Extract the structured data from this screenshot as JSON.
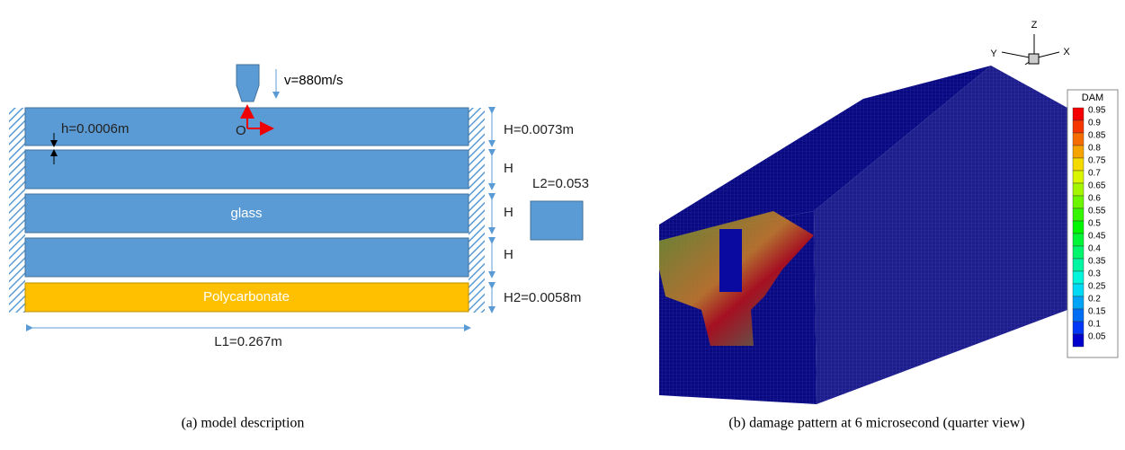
{
  "panel_a": {
    "velocity": "v=880m/s",
    "gap": "h=0.0006m",
    "origin": "O",
    "layer_height": "H=0.0073m",
    "layer_labels": [
      "H",
      "H",
      "H"
    ],
    "plate": "L2=0.053",
    "glass": "glass",
    "backing": "Polycarbonate",
    "backing_height": "H2=0.0058m",
    "length": "L1=0.267m",
    "caption": "(a) model description"
  },
  "panel_b": {
    "axes": [
      "Z",
      "Y",
      "X"
    ],
    "legend": {
      "title": "DAM",
      "levels": [
        0.95,
        0.9,
        0.85,
        0.8,
        0.75,
        0.7,
        0.65,
        0.6,
        0.55,
        0.5,
        0.45,
        0.4,
        0.35,
        0.3,
        0.25,
        0.2,
        0.15,
        0.1,
        0.05
      ]
    },
    "caption": "(b) damage pattern at 6 microsecond (quarter view)"
  }
}
